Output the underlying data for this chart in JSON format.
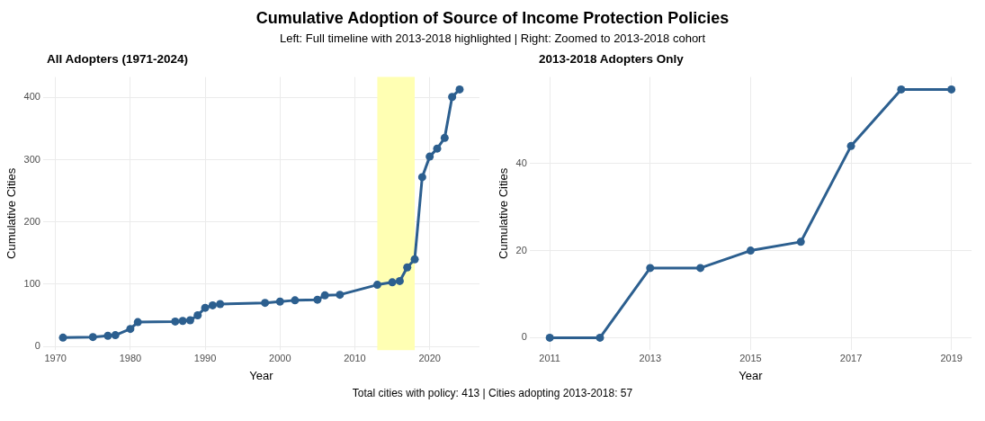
{
  "chart_data": [
    {
      "type": "other",
      "title": "Cumulative Adoption of Source of Income Protection Policies",
      "subtitle": "Left: Full timeline with 2013-2018 highlighted | Right: Zoomed to 2013-2018 cohort",
      "annotations": [
        "Total cities with policy: 413 | Cities adopting 2013-2018: 57"
      ]
    },
    {
      "type": "line",
      "title": "All Adopters (1971-2024)",
      "xlabel": "Year",
      "ylabel": "Cumulative Cities",
      "x": [
        1971,
        1975,
        1977,
        1978,
        1980,
        1981,
        1986,
        1987,
        1988,
        1989,
        1990,
        1991,
        1992,
        1998,
        2000,
        2002,
        2005,
        2006,
        2008,
        2013,
        2015,
        2016,
        2017,
        2018,
        2019,
        2020,
        2021,
        2022,
        2023,
        2024
      ],
      "series": [
        {
          "color": "#2c5f8f",
          "values": [
            14,
            15,
            17,
            18,
            28,
            39,
            40,
            41,
            42,
            50,
            62,
            66,
            68,
            70,
            72,
            74,
            75,
            82,
            83,
            99,
            103,
            105,
            127,
            140,
            272,
            305,
            318,
            335,
            401,
            413
          ]
        }
      ],
      "xlim": [
        1968.35,
        2026.65
      ],
      "xticks": [
        1970,
        1980,
        1990,
        2000,
        2010,
        2020
      ],
      "ylim": [
        -6,
        433
      ],
      "yticks": [
        0,
        100,
        200,
        300,
        400
      ],
      "bands": [
        {
          "axis": "x",
          "from": 2013,
          "to": 2018,
          "color": "#ffffb3"
        }
      ],
      "grid": true,
      "legend": false,
      "marker": "circle",
      "line_style": "solid"
    },
    {
      "type": "line",
      "title": "2013-2018 Adopters Only",
      "xlabel": "Year",
      "ylabel": "Cumulative Cities",
      "x": [
        2011,
        2012,
        2013,
        2014,
        2015,
        2016,
        2017,
        2018,
        2019
      ],
      "series": [
        {
          "color": "#2c5f8f",
          "values": [
            0,
            0,
            16,
            16,
            20,
            22,
            44,
            57,
            57
          ]
        }
      ],
      "xlim": [
        2010.6,
        2019.4
      ],
      "xticks": [
        2011,
        2013,
        2015,
        2017,
        2019
      ],
      "ylim": [
        -2.85,
        59.85
      ],
      "yticks": [
        0,
        20,
        40
      ],
      "grid": true,
      "legend": false,
      "marker": "circle",
      "line_style": "solid"
    }
  ]
}
